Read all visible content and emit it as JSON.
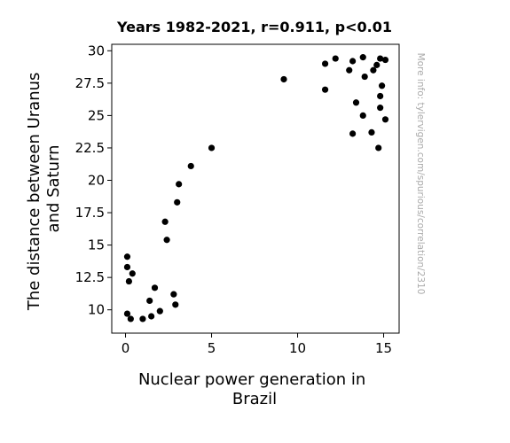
{
  "chart_data": {
    "type": "scatter",
    "title": "Years 1982-2021, r=0.911, p<0.01",
    "xlabel": [
      "Nuclear power generation in",
      "Brazil"
    ],
    "ylabel": [
      "The distance between Uranus",
      "and Saturn"
    ],
    "xlim": [
      -0.8,
      15.9
    ],
    "ylim": [
      8.2,
      30.5
    ],
    "xticks": [
      0,
      5,
      10,
      15
    ],
    "xtick_labels": [
      "0",
      "5",
      "10",
      "15"
    ],
    "yticks": [
      10,
      12.5,
      15,
      17.5,
      20,
      22.5,
      25,
      27.5,
      30
    ],
    "ytick_labels": [
      "10",
      "12.5",
      "15",
      "17.5",
      "20",
      "22.5",
      "25",
      "27.5",
      "30"
    ],
    "grid": false,
    "marker_color": "#000000",
    "points": [
      {
        "x": 0.1,
        "y": 14.1
      },
      {
        "x": 0.1,
        "y": 13.3
      },
      {
        "x": 0.4,
        "y": 12.8
      },
      {
        "x": 0.2,
        "y": 12.2
      },
      {
        "x": 0.1,
        "y": 9.7
      },
      {
        "x": 0.3,
        "y": 9.3
      },
      {
        "x": 1.0,
        "y": 9.3
      },
      {
        "x": 1.5,
        "y": 9.5
      },
      {
        "x": 1.4,
        "y": 10.7
      },
      {
        "x": 1.7,
        "y": 11.7
      },
      {
        "x": 2.0,
        "y": 9.9
      },
      {
        "x": 2.8,
        "y": 11.2
      },
      {
        "x": 2.9,
        "y": 10.4
      },
      {
        "x": 2.4,
        "y": 15.4
      },
      {
        "x": 2.3,
        "y": 16.8
      },
      {
        "x": 3.0,
        "y": 18.3
      },
      {
        "x": 3.1,
        "y": 19.7
      },
      {
        "x": 3.8,
        "y": 21.1
      },
      {
        "x": 5.0,
        "y": 22.5
      },
      {
        "x": 9.2,
        "y": 27.8
      },
      {
        "x": 11.6,
        "y": 29.0
      },
      {
        "x": 11.6,
        "y": 27.0
      },
      {
        "x": 12.2,
        "y": 29.4
      },
      {
        "x": 13.0,
        "y": 28.5
      },
      {
        "x": 13.2,
        "y": 29.2
      },
      {
        "x": 13.8,
        "y": 29.5
      },
      {
        "x": 13.9,
        "y": 28.0
      },
      {
        "x": 13.2,
        "y": 23.6
      },
      {
        "x": 13.4,
        "y": 26.0
      },
      {
        "x": 13.8,
        "y": 25.0
      },
      {
        "x": 14.3,
        "y": 23.7
      },
      {
        "x": 14.4,
        "y": 28.5
      },
      {
        "x": 14.6,
        "y": 28.9
      },
      {
        "x": 14.8,
        "y": 29.4
      },
      {
        "x": 15.1,
        "y": 29.3
      },
      {
        "x": 14.9,
        "y": 27.3
      },
      {
        "x": 14.8,
        "y": 26.5
      },
      {
        "x": 14.8,
        "y": 25.6
      },
      {
        "x": 15.1,
        "y": 24.7
      },
      {
        "x": 14.7,
        "y": 22.5
      }
    ]
  },
  "watermark": "More info: tylervigen.com/spurious/correlation/2310"
}
